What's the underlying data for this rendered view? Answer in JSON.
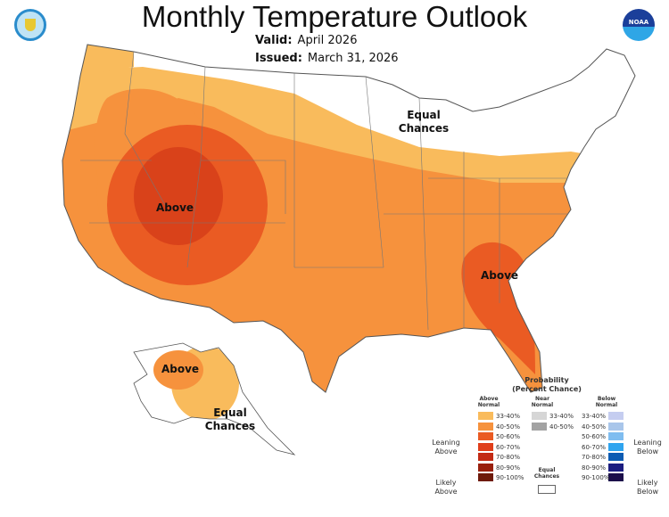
{
  "header": {
    "title": "Monthly Temperature Outlook",
    "valid_label": "Valid:",
    "valid_value": "April 2026",
    "issued_label": "Issued:",
    "issued_value": "March 31, 2026"
  },
  "logos": {
    "left": "department-of-commerce-seal",
    "right": "NOAA",
    "right_text": "NOAA"
  },
  "map": {
    "labels": {
      "equal_ne": "Equal Chances",
      "above_west": "Above",
      "above_se": "Above",
      "above_ak": "Above",
      "equal_ak": "Equal Chances"
    },
    "colors": {
      "leaning_above": "#f9bb5c",
      "above_40_50": "#f6923d",
      "above_50_60": "#ea5b23",
      "above_60_70": "#d9421a",
      "equal": "#ffffff"
    }
  },
  "legend": {
    "title": "Probability",
    "subtitle": "(Percent Chance)",
    "above": {
      "header": "Above Normal",
      "items": [
        {
          "range": "33-40%",
          "color": "#f9bb5c"
        },
        {
          "range": "40-50%",
          "color": "#f6923d"
        },
        {
          "range": "50-60%",
          "color": "#ea5b23"
        },
        {
          "range": "60-70%",
          "color": "#e03e1a"
        },
        {
          "range": "70-80%",
          "color": "#c32a14"
        },
        {
          "range": "80-90%",
          "color": "#99200e"
        },
        {
          "range": "90-100%",
          "color": "#6e1a0a"
        }
      ]
    },
    "near": {
      "header": "Near Normal",
      "items": [
        {
          "range": "33-40%",
          "color": "#d6d6d6"
        },
        {
          "range": "40-50%",
          "color": "#a3a3a3"
        }
      ]
    },
    "equal": "Equal Chances",
    "below": {
      "header": "Below Normal",
      "items": [
        {
          "range": "33-40%",
          "color": "#c5cdf0"
        },
        {
          "range": "40-50%",
          "color": "#a9c6ea"
        },
        {
          "range": "50-60%",
          "color": "#7fbdf0"
        },
        {
          "range": "60-70%",
          "color": "#2fa4ef"
        },
        {
          "range": "70-80%",
          "color": "#0d5cb3"
        },
        {
          "range": "80-90%",
          "color": "#1b1d80"
        },
        {
          "range": "90-100%",
          "color": "#1b0e4a"
        }
      ]
    },
    "side": {
      "leaning_above": "Leaning Above",
      "likely_above": "Likely Above",
      "leaning_below": "Leaning Below",
      "likely_below": "Likely Below"
    }
  }
}
